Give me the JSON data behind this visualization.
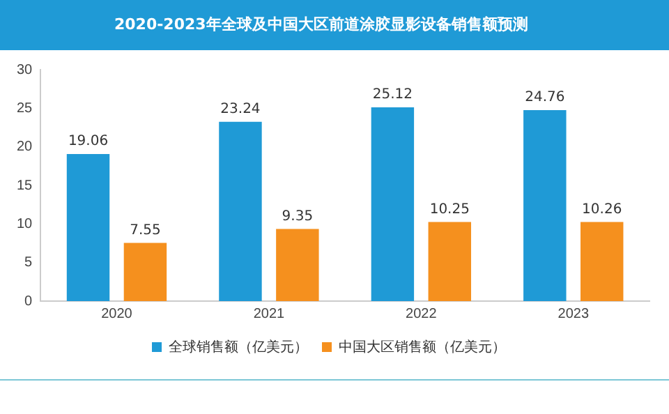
{
  "chart_data": {
    "type": "bar",
    "title": "2020-2023年全球及中国大区前道涂胶显影设备销售额预测",
    "categories": [
      "2020",
      "2021",
      "2022",
      "2023"
    ],
    "series": [
      {
        "name": "全球销售额（亿美元）",
        "color": "#1f9ad6",
        "values": [
          19.06,
          23.24,
          25.12,
          24.76
        ]
      },
      {
        "name": "中国大区销售额（亿美元）",
        "color": "#f5901e",
        "values": [
          7.55,
          9.35,
          10.25,
          10.26
        ]
      }
    ],
    "ylim": [
      0,
      30
    ],
    "yticks": [
      0,
      5,
      10,
      15,
      20,
      25,
      30
    ],
    "grid": false,
    "legend": "bottom",
    "data_labels": true
  }
}
